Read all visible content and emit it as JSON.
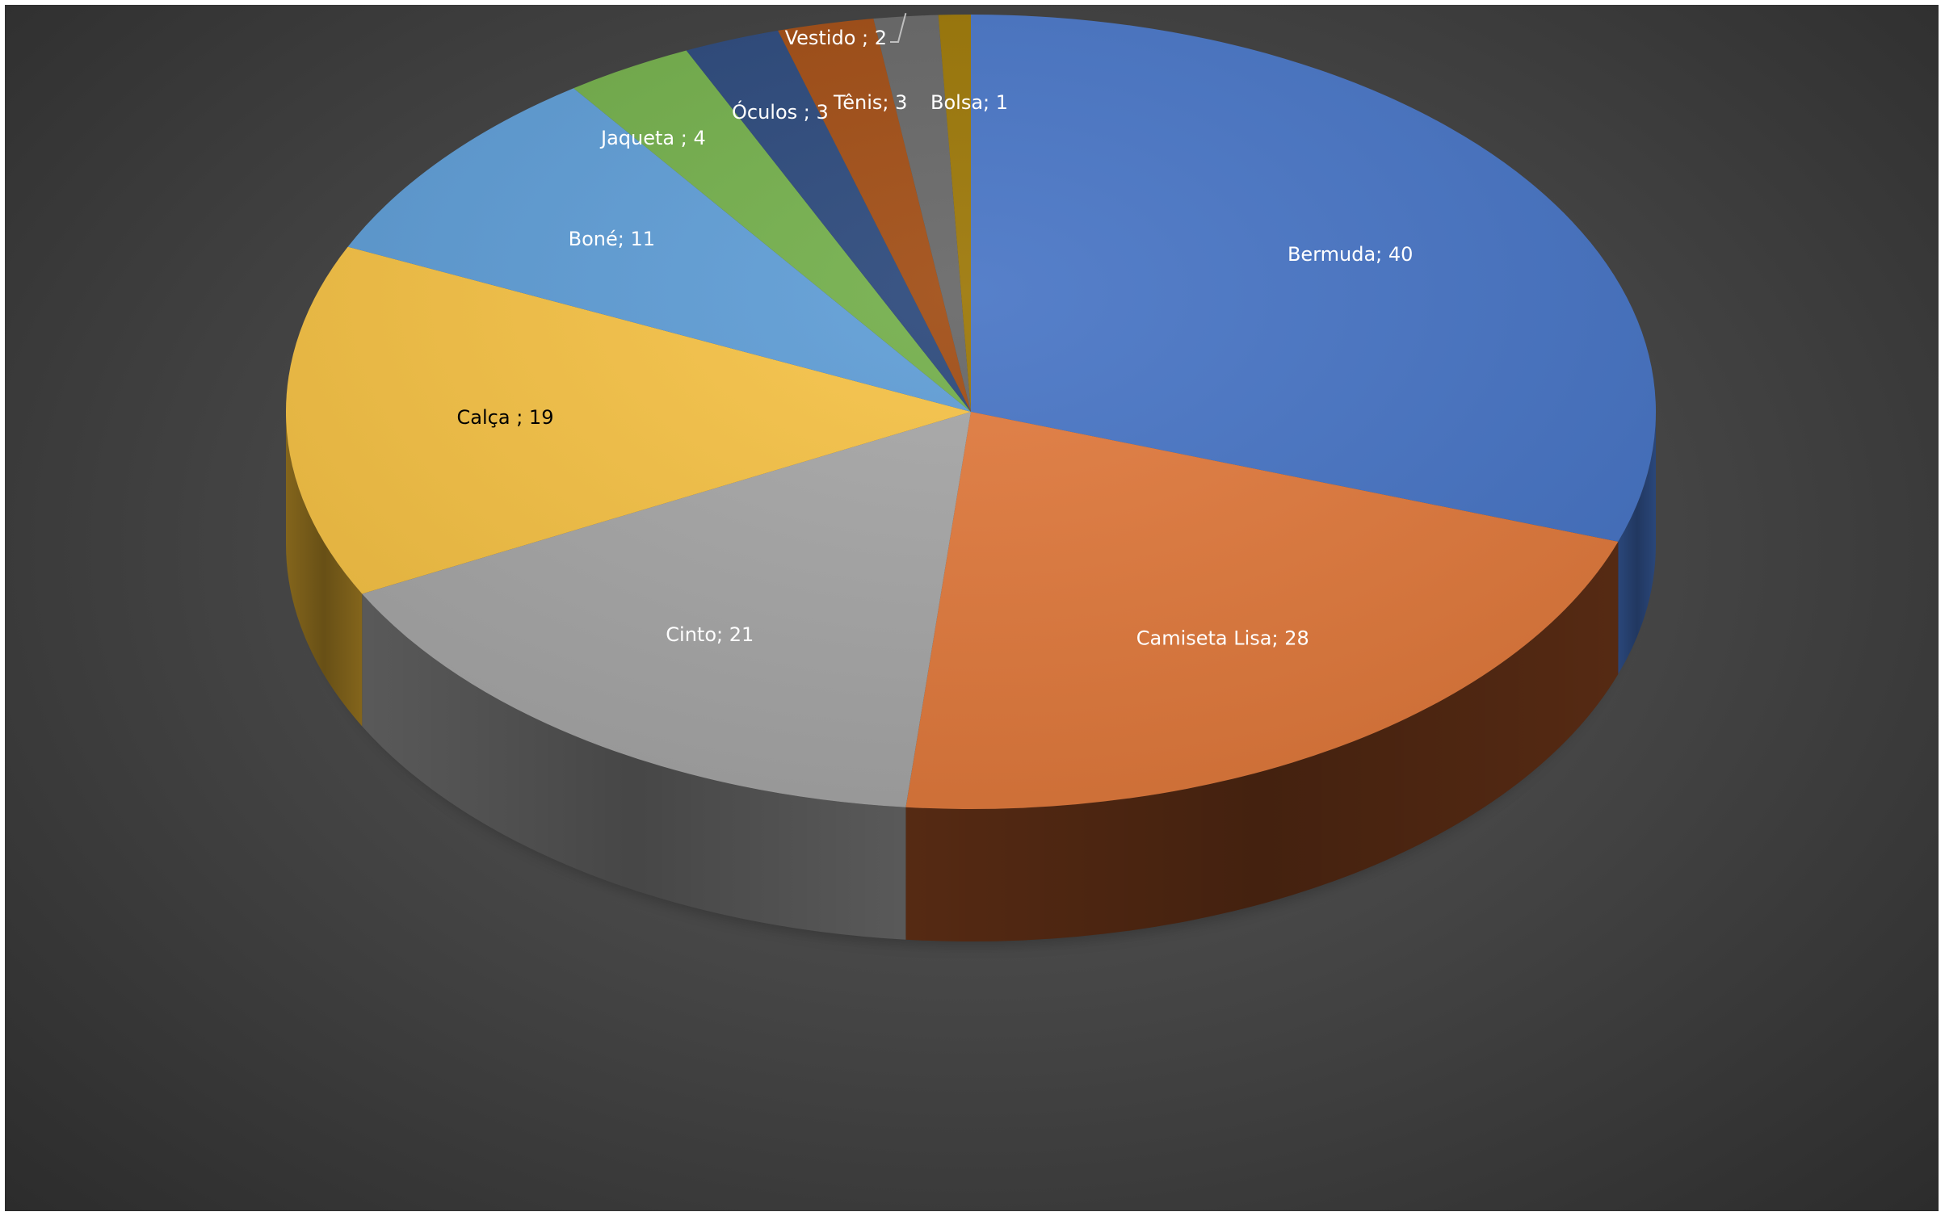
{
  "chart_data": {
    "type": "pie",
    "style": "3d",
    "title": "",
    "legend": "none",
    "slices": [
      {
        "label": "Bermuda; 40",
        "category": "Bermuda",
        "value": 40,
        "color": "#4472c4",
        "side_color": "#2c4a80",
        "label_color": "#ffffff"
      },
      {
        "label": "Camiseta Lisa; 28",
        "category": "Camiseta Lisa",
        "value": 28,
        "color": "#e1783a",
        "side_color": "#5a2c14",
        "label_color": "#ffffff"
      },
      {
        "label": "Cinto; 21",
        "category": "Cinto",
        "value": 21,
        "color": "#a5a5a5",
        "side_color": "#5e5e5e",
        "label_color": "#ffffff"
      },
      {
        "label": "Calça ; 19",
        "category": "Calça",
        "value": 19,
        "color": "#f6c142",
        "side_color": "#8a6a1d",
        "label_color": "#000000"
      },
      {
        "label": "Boné; 11",
        "category": "Boné",
        "value": 11,
        "color": "#5b9bd5",
        "side_color": "#335a7c",
        "label_color": "#ffffff"
      },
      {
        "label": "Jaqueta ; 4",
        "category": "Jaqueta",
        "value": 4,
        "color": "#70ad47",
        "side_color": "#3f6327",
        "label_color": "#ffffff"
      },
      {
        "label": "Óculos ; 3",
        "category": "Óculos",
        "value": 3,
        "color": "#264478",
        "side_color": "#152744",
        "label_color": "#ffffff"
      },
      {
        "label": "Tênis; 3",
        "category": "Tênis",
        "value": 3,
        "color": "#9e480e",
        "side_color": "#5a2808",
        "label_color": "#ffffff"
      },
      {
        "label": "Vestido ; 2",
        "category": "Vestido",
        "value": 2,
        "color": "#636363",
        "side_color": "#393939",
        "label_color": "#ffffff"
      },
      {
        "label": "Bolsa; 1",
        "category": "Bolsa",
        "value": 1,
        "color": "#997300",
        "side_color": "#574100",
        "label_color": "#ffffff"
      }
    ]
  }
}
